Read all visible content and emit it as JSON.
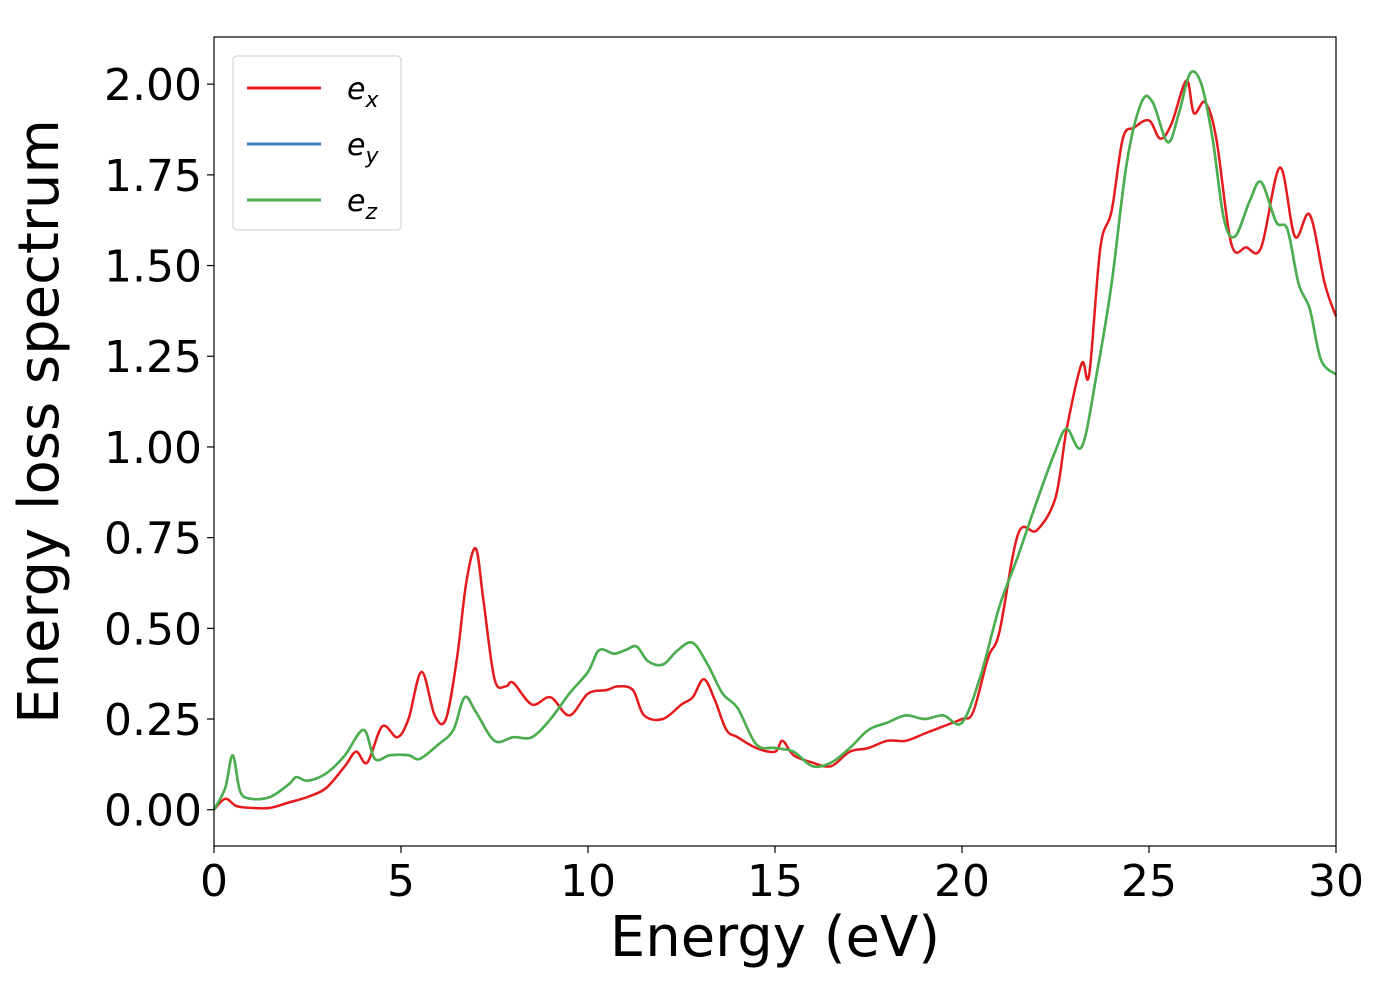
{
  "chart_data": {
    "type": "line",
    "xlabel": "Energy (eV)",
    "ylabel": "Energy loss spectrum",
    "xlim": [
      0,
      30
    ],
    "ylim": [
      -0.1,
      2.13
    ],
    "xticks": [
      0,
      5,
      10,
      15,
      20,
      25,
      30
    ],
    "xtick_labels": [
      "0",
      "5",
      "10",
      "15",
      "20",
      "25",
      "30"
    ],
    "yticks": [
      0.0,
      0.25,
      0.5,
      0.75,
      1.0,
      1.25,
      1.5,
      1.75,
      2.0
    ],
    "ytick_labels": [
      "0.00",
      "0.25",
      "0.50",
      "0.75",
      "1.00",
      "1.25",
      "1.50",
      "1.75",
      "2.00"
    ],
    "grid": false,
    "legend_position": "top-left",
    "series": [
      {
        "name": "e",
        "subscript": "x",
        "color": "#e41a1c",
        "x": [
          0,
          0.3,
          0.6,
          1,
          1.5,
          2,
          2.5,
          3,
          3.5,
          3.8,
          4.1,
          4.5,
          4.9,
          5.2,
          5.55,
          5.9,
          6.2,
          6.5,
          6.75,
          7.0,
          7.2,
          7.5,
          7.8,
          8.0,
          8.5,
          9.0,
          9.5,
          10.0,
          10.5,
          10.8,
          11.2,
          11.5,
          12.0,
          12.5,
          12.8,
          13.1,
          13.4,
          13.7,
          14.0,
          14.5,
          15.0,
          15.2,
          15.5,
          16.0,
          16.5,
          17.0,
          17.5,
          18.0,
          18.5,
          19.0,
          19.5,
          20.0,
          20.3,
          20.7,
          21.0,
          21.5,
          22.0,
          22.5,
          22.8,
          23.2,
          23.4,
          23.7,
          24.0,
          24.3,
          24.6,
          25.0,
          25.3,
          25.6,
          26.0,
          26.2,
          26.5,
          26.8,
          27.2,
          27.6,
          28.0,
          28.5,
          28.9,
          29.3,
          29.7,
          30.0
        ],
        "y": [
          0.0,
          0.03,
          0.01,
          0.005,
          0.005,
          0.02,
          0.035,
          0.06,
          0.12,
          0.16,
          0.13,
          0.23,
          0.2,
          0.25,
          0.38,
          0.26,
          0.25,
          0.42,
          0.63,
          0.72,
          0.58,
          0.36,
          0.34,
          0.35,
          0.29,
          0.31,
          0.26,
          0.32,
          0.33,
          0.34,
          0.33,
          0.26,
          0.25,
          0.29,
          0.31,
          0.36,
          0.3,
          0.22,
          0.2,
          0.17,
          0.16,
          0.19,
          0.15,
          0.13,
          0.12,
          0.16,
          0.17,
          0.19,
          0.19,
          0.21,
          0.23,
          0.25,
          0.27,
          0.42,
          0.49,
          0.76,
          0.77,
          0.86,
          1.05,
          1.23,
          1.2,
          1.55,
          1.65,
          1.85,
          1.88,
          1.9,
          1.85,
          1.89,
          2.01,
          1.92,
          1.95,
          1.85,
          1.56,
          1.55,
          1.55,
          1.77,
          1.58,
          1.64,
          1.45,
          1.36
        ]
      },
      {
        "name": "e",
        "subscript": "y",
        "color": "#377eb8",
        "x": [
          0,
          0.3,
          0.5,
          0.7,
          1.0,
          1.5,
          2.0,
          2.2,
          2.5,
          3.0,
          3.5,
          4.0,
          4.3,
          4.7,
          5.2,
          5.5,
          6.0,
          6.4,
          6.7,
          7.0,
          7.5,
          8.0,
          8.5,
          9.0,
          9.5,
          10.0,
          10.3,
          10.7,
          11.0,
          11.3,
          11.6,
          12.0,
          12.4,
          12.8,
          13.2,
          13.6,
          14.0,
          14.5,
          15.0,
          15.5,
          16.0,
          16.5,
          17.0,
          17.5,
          18.0,
          18.5,
          19.0,
          19.5,
          20.0,
          20.5,
          21.0,
          21.5,
          22.0,
          22.5,
          22.8,
          23.2,
          23.6,
          24.0,
          24.4,
          24.8,
          25.1,
          25.5,
          25.8,
          26.1,
          26.4,
          26.7,
          27.0,
          27.3,
          27.7,
          28.0,
          28.4,
          28.7,
          29.0,
          29.3,
          29.6,
          30.0
        ],
        "y": [
          0.0,
          0.06,
          0.15,
          0.05,
          0.03,
          0.035,
          0.07,
          0.09,
          0.08,
          0.1,
          0.15,
          0.22,
          0.14,
          0.15,
          0.15,
          0.14,
          0.18,
          0.22,
          0.31,
          0.27,
          0.19,
          0.2,
          0.2,
          0.25,
          0.32,
          0.38,
          0.44,
          0.43,
          0.44,
          0.45,
          0.41,
          0.4,
          0.44,
          0.46,
          0.4,
          0.32,
          0.28,
          0.18,
          0.17,
          0.16,
          0.12,
          0.13,
          0.17,
          0.22,
          0.24,
          0.26,
          0.25,
          0.26,
          0.24,
          0.37,
          0.56,
          0.7,
          0.85,
          0.99,
          1.05,
          1.0,
          1.2,
          1.45,
          1.78,
          1.95,
          1.95,
          1.84,
          1.92,
          2.03,
          2.0,
          1.85,
          1.63,
          1.58,
          1.68,
          1.73,
          1.62,
          1.6,
          1.45,
          1.38,
          1.24,
          1.2
        ]
      },
      {
        "name": "e",
        "subscript": "z",
        "color": "#4daf4a",
        "x": [
          0,
          0.3,
          0.5,
          0.7,
          1.0,
          1.5,
          2.0,
          2.2,
          2.5,
          3.0,
          3.5,
          4.0,
          4.3,
          4.7,
          5.2,
          5.5,
          6.0,
          6.4,
          6.7,
          7.0,
          7.5,
          8.0,
          8.5,
          9.0,
          9.5,
          10.0,
          10.3,
          10.7,
          11.0,
          11.3,
          11.6,
          12.0,
          12.4,
          12.8,
          13.2,
          13.6,
          14.0,
          14.5,
          15.0,
          15.5,
          16.0,
          16.5,
          17.0,
          17.5,
          18.0,
          18.5,
          19.0,
          19.5,
          20.0,
          20.5,
          21.0,
          21.5,
          22.0,
          22.5,
          22.8,
          23.2,
          23.6,
          24.0,
          24.4,
          24.8,
          25.1,
          25.5,
          25.8,
          26.1,
          26.4,
          26.7,
          27.0,
          27.3,
          27.7,
          28.0,
          28.4,
          28.7,
          29.0,
          29.3,
          29.6,
          30.0
        ],
        "y": [
          0.0,
          0.06,
          0.15,
          0.05,
          0.03,
          0.035,
          0.07,
          0.09,
          0.08,
          0.1,
          0.15,
          0.22,
          0.14,
          0.15,
          0.15,
          0.14,
          0.18,
          0.22,
          0.31,
          0.27,
          0.19,
          0.2,
          0.2,
          0.25,
          0.32,
          0.38,
          0.44,
          0.43,
          0.44,
          0.45,
          0.41,
          0.4,
          0.44,
          0.46,
          0.4,
          0.32,
          0.28,
          0.18,
          0.17,
          0.16,
          0.12,
          0.13,
          0.17,
          0.22,
          0.24,
          0.26,
          0.25,
          0.26,
          0.24,
          0.37,
          0.56,
          0.7,
          0.85,
          0.99,
          1.05,
          1.0,
          1.2,
          1.45,
          1.78,
          1.95,
          1.95,
          1.84,
          1.92,
          2.03,
          2.0,
          1.85,
          1.63,
          1.58,
          1.68,
          1.73,
          1.62,
          1.6,
          1.45,
          1.38,
          1.24,
          1.2
        ]
      }
    ]
  }
}
